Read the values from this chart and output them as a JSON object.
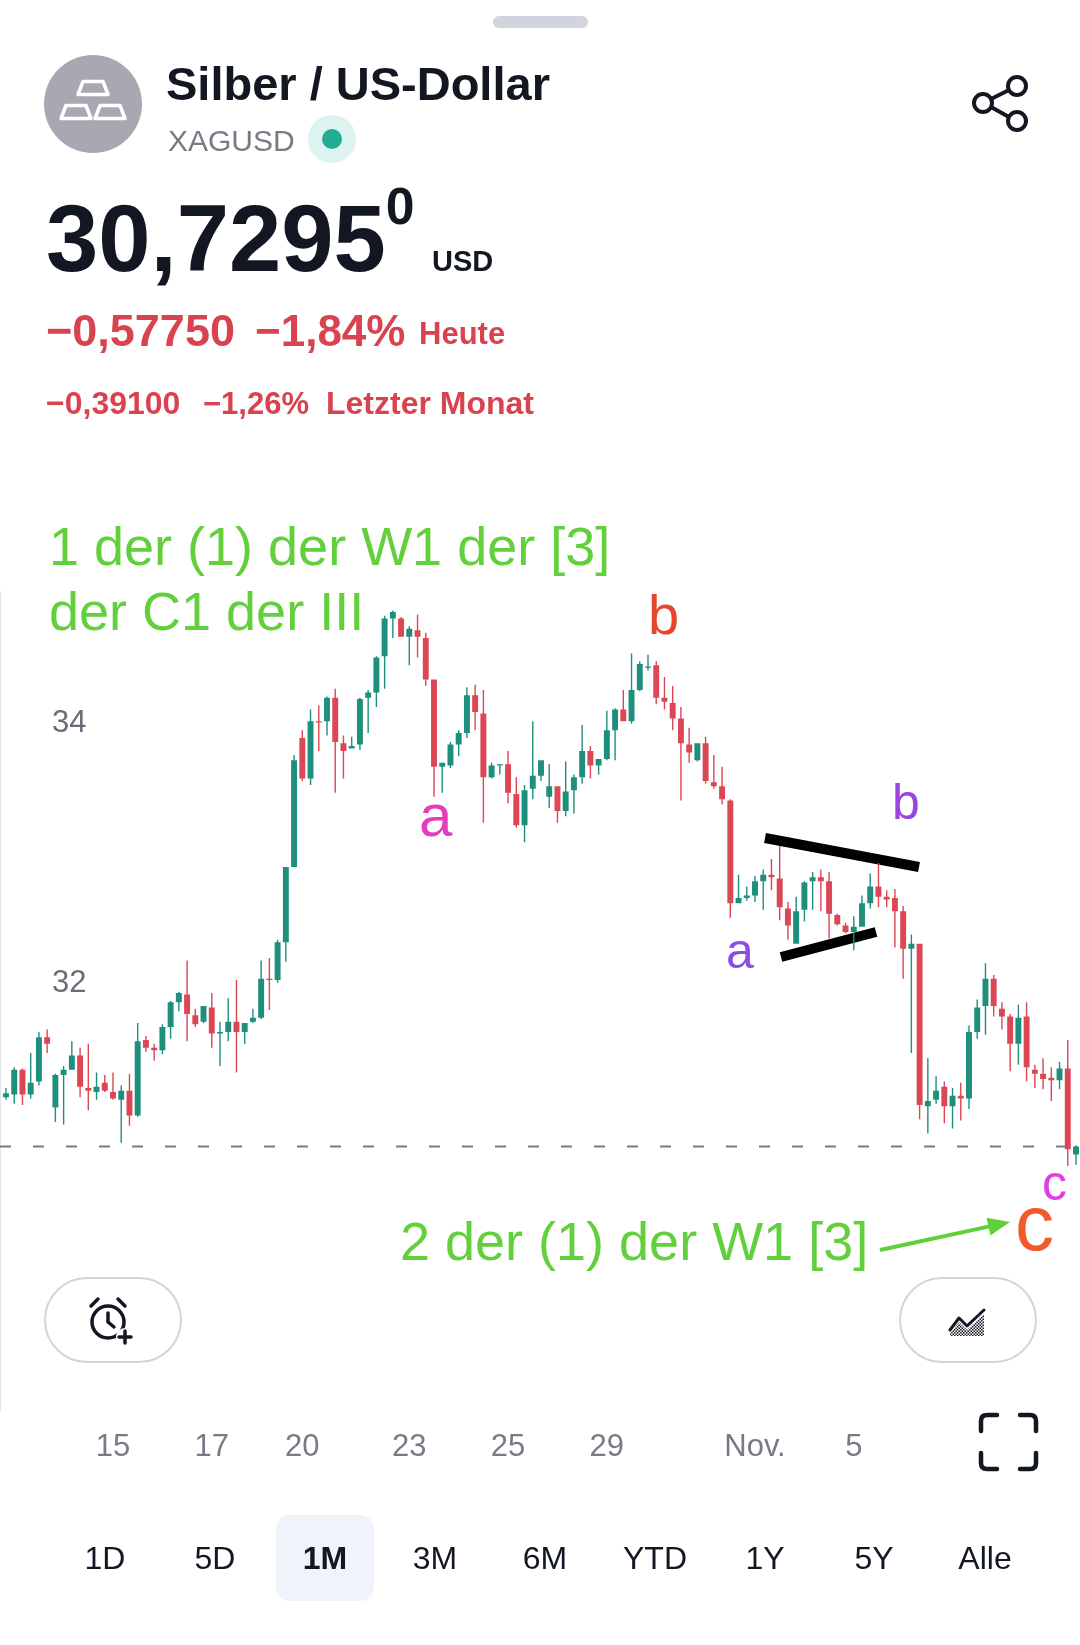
{
  "chart_data": {
    "type": "candlestick",
    "title": "Silber / US-Dollar",
    "subtitle": "XAGUSD",
    "categories": [
      null,
      null,
      null,
      null,
      null,
      null,
      null,
      null,
      null,
      null,
      null,
      null,
      null,
      "15",
      null,
      null,
      null,
      null,
      null,
      null,
      null,
      null,
      null,
      null,
      null,
      "17",
      null,
      null,
      null,
      null,
      null,
      null,
      null,
      null,
      null,
      null,
      "20",
      null,
      null,
      null,
      null,
      null,
      null,
      null,
      null,
      null,
      null,
      null,
      null,
      "23",
      null,
      null,
      null,
      null,
      null,
      null,
      null,
      null,
      null,
      null,
      null,
      "25",
      null,
      null,
      null,
      null,
      null,
      null,
      null,
      null,
      null,
      null,
      null,
      "29",
      null,
      null,
      null,
      null,
      null,
      null,
      null,
      null,
      null,
      null,
      null,
      null,
      null,
      null,
      null,
      null,
      null,
      "Nov.",
      null,
      null,
      null,
      null,
      null,
      null,
      null,
      null,
      null,
      null,
      null,
      "5",
      null,
      null,
      null,
      null,
      null,
      null,
      null,
      null,
      null,
      null,
      null,
      null,
      null,
      null,
      null,
      null,
      null,
      null,
      null,
      null,
      null,
      null,
      null,
      null,
      null,
      null,
      null
    ],
    "ohlc": [
      [
        31.11,
        31.18,
        31.09,
        31.14
      ],
      [
        31.13,
        31.34,
        31.06,
        31.32
      ],
      [
        31.32,
        31.33,
        31.05,
        31.13
      ],
      [
        31.13,
        31.45,
        31.1,
        31.22
      ],
      [
        31.23,
        31.61,
        31.2,
        31.57
      ],
      [
        31.57,
        31.63,
        31.45,
        31.52
      ],
      [
        31.03,
        31.29,
        30.92,
        31.28
      ],
      [
        31.28,
        31.35,
        30.9,
        31.32
      ],
      [
        31.32,
        31.54,
        31.32,
        31.43
      ],
      [
        31.43,
        31.49,
        31.11,
        31.19
      ],
      [
        31.18,
        31.52,
        31.01,
        31.16
      ],
      [
        31.15,
        31.3,
        31.09,
        31.19
      ],
      [
        31.22,
        31.28,
        31.15,
        31.16
      ],
      [
        31.15,
        31.3,
        31.09,
        31.1
      ],
      [
        31.09,
        31.2,
        30.76,
        31.16
      ],
      [
        31.16,
        31.29,
        30.89,
        30.97
      ],
      [
        30.97,
        31.68,
        30.96,
        31.54
      ],
      [
        31.55,
        31.58,
        31.46,
        31.49
      ],
      [
        31.49,
        31.52,
        31.39,
        31.47
      ],
      [
        31.47,
        31.67,
        31.44,
        31.65
      ],
      [
        31.65,
        31.85,
        31.56,
        31.84
      ],
      [
        31.84,
        31.92,
        31.77,
        31.91
      ],
      [
        31.9,
        32.16,
        31.54,
        31.75
      ],
      [
        31.74,
        31.79,
        31.65,
        31.67
      ],
      [
        31.69,
        31.81,
        31.68,
        31.81
      ],
      [
        31.8,
        31.91,
        31.49,
        31.6
      ],
      [
        31.6,
        31.69,
        31.35,
        31.61
      ],
      [
        31.61,
        31.87,
        31.54,
        31.69
      ],
      [
        31.69,
        32.01,
        31.3,
        31.61
      ],
      [
        31.61,
        31.68,
        31.52,
        31.68
      ],
      [
        31.69,
        31.79,
        31.68,
        31.72
      ],
      [
        31.72,
        32.16,
        31.71,
        32.02
      ],
      [
        32.02,
        32.18,
        31.78,
        32.01
      ],
      [
        32.01,
        32.32,
        31.99,
        32.3
      ],
      [
        32.3,
        32.88,
        32.15,
        32.88
      ],
      [
        32.88,
        33.74,
        32.88,
        33.7
      ],
      [
        33.87,
        33.93,
        33.54,
        33.56
      ],
      [
        33.56,
        34.09,
        33.51,
        34.0
      ],
      [
        34.0,
        34.12,
        33.77,
        33.99
      ],
      [
        34.0,
        34.19,
        33.89,
        34.18
      ],
      [
        34.18,
        34.25,
        33.45,
        33.84
      ],
      [
        33.83,
        33.89,
        33.56,
        33.77
      ],
      [
        33.79,
        33.88,
        33.79,
        33.81
      ],
      [
        33.82,
        34.18,
        33.78,
        34.17
      ],
      [
        34.18,
        34.24,
        33.91,
        34.22
      ],
      [
        34.22,
        34.5,
        34.11,
        34.49
      ],
      [
        34.5,
        34.81,
        34.25,
        34.79
      ],
      [
        34.79,
        34.85,
        34.64,
        34.84
      ],
      [
        34.79,
        34.8,
        34.65,
        34.65
      ],
      [
        34.65,
        34.73,
        34.43,
        34.71
      ],
      [
        34.7,
        34.82,
        34.49,
        34.65
      ],
      [
        34.64,
        34.68,
        34.27,
        34.32
      ],
      [
        34.32,
        34.32,
        33.42,
        33.65
      ],
      [
        33.65,
        33.68,
        33.45,
        33.68
      ],
      [
        33.66,
        33.84,
        33.64,
        33.82
      ],
      [
        33.82,
        33.93,
        33.73,
        33.91
      ],
      [
        33.91,
        34.26,
        33.87,
        34.2
      ],
      [
        34.2,
        34.28,
        33.93,
        34.07
      ],
      [
        34.06,
        34.24,
        33.22,
        33.57
      ],
      [
        33.57,
        33.68,
        33.56,
        33.66
      ],
      [
        33.66,
        33.67,
        33.59,
        33.67
      ],
      [
        33.67,
        33.77,
        33.37,
        33.45
      ],
      [
        33.44,
        33.57,
        33.18,
        33.2
      ],
      [
        33.2,
        33.51,
        33.07,
        33.47
      ],
      [
        33.48,
        34.0,
        33.4,
        33.58
      ],
      [
        33.58,
        33.7,
        33.54,
        33.7
      ],
      [
        33.42,
        33.67,
        33.33,
        33.5
      ],
      [
        33.5,
        33.5,
        33.22,
        33.31
      ],
      [
        33.31,
        33.69,
        33.27,
        33.46
      ],
      [
        33.47,
        33.59,
        33.29,
        33.57
      ],
      [
        33.57,
        33.97,
        33.52,
        33.77
      ],
      [
        33.77,
        33.81,
        33.56,
        33.66
      ],
      [
        33.66,
        33.71,
        33.59,
        33.71
      ],
      [
        33.71,
        34.08,
        33.7,
        33.93
      ],
      [
        33.93,
        34.1,
        33.7,
        34.09
      ],
      [
        34.09,
        34.24,
        34.0,
        34.0
      ],
      [
        34.0,
        34.52,
        33.98,
        34.24
      ],
      [
        34.24,
        34.46,
        34.23,
        34.44
      ],
      [
        34.41,
        34.51,
        34.39,
        34.42
      ],
      [
        34.43,
        34.46,
        34.13,
        34.18
      ],
      [
        34.18,
        34.34,
        34.09,
        34.15
      ],
      [
        34.14,
        34.27,
        33.93,
        34.02
      ],
      [
        34.02,
        34.11,
        33.39,
        33.83
      ],
      [
        33.82,
        33.95,
        33.68,
        33.76
      ],
      [
        33.7,
        33.83,
        33.69,
        33.83
      ],
      [
        33.83,
        33.88,
        33.52,
        33.54
      ],
      [
        33.53,
        33.74,
        33.48,
        33.5
      ],
      [
        33.5,
        33.65,
        33.36,
        33.4
      ],
      [
        33.39,
        33.4,
        32.49,
        32.6
      ],
      [
        32.6,
        32.82,
        32.6,
        32.64
      ],
      [
        32.64,
        32.73,
        32.62,
        32.66
      ],
      [
        32.66,
        32.81,
        32.61,
        32.77
      ],
      [
        32.77,
        32.86,
        32.55,
        32.82
      ],
      [
        32.82,
        32.94,
        32.7,
        32.8
      ],
      [
        32.79,
        33.04,
        32.47,
        32.57
      ],
      [
        32.56,
        32.61,
        32.32,
        32.43
      ],
      [
        32.29,
        32.65,
        32.29,
        32.54
      ],
      [
        32.55,
        32.77,
        32.46,
        32.76
      ],
      [
        32.77,
        32.84,
        32.55,
        32.8
      ],
      [
        32.8,
        32.86,
        32.54,
        32.77
      ],
      [
        32.77,
        32.84,
        32.33,
        32.52
      ],
      [
        32.51,
        32.52,
        32.43,
        32.44
      ],
      [
        32.43,
        32.45,
        32.37,
        32.38
      ],
      [
        32.38,
        32.5,
        32.24,
        32.42
      ],
      [
        32.42,
        32.66,
        32.42,
        32.6
      ],
      [
        32.6,
        32.83,
        32.56,
        32.73
      ],
      [
        32.73,
        32.91,
        32.57,
        32.65
      ],
      [
        32.65,
        32.7,
        32.57,
        32.63
      ],
      [
        32.64,
        32.71,
        32.26,
        32.54
      ],
      [
        32.54,
        32.58,
        32.02,
        32.25
      ],
      [
        32.25,
        32.36,
        31.45,
        32.29
      ],
      [
        32.29,
        32.29,
        30.94,
        31.05
      ],
      [
        31.04,
        31.41,
        30.83,
        31.08
      ],
      [
        31.09,
        31.27,
        31.06,
        31.16
      ],
      [
        31.19,
        31.23,
        30.91,
        31.04
      ],
      [
        31.04,
        31.18,
        30.87,
        31.12
      ],
      [
        31.12,
        31.22,
        30.93,
        31.1
      ],
      [
        31.1,
        31.66,
        31.02,
        31.61
      ],
      [
        31.61,
        31.86,
        31.56,
        31.8
      ],
      [
        31.81,
        32.14,
        31.59,
        32.02
      ],
      [
        32.02,
        32.05,
        31.73,
        31.81
      ],
      [
        31.79,
        31.84,
        31.63,
        31.73
      ],
      [
        31.73,
        31.75,
        31.31,
        31.52
      ],
      [
        31.52,
        31.82,
        31.36,
        31.72
      ],
      [
        31.73,
        31.84,
        31.23,
        31.34
      ],
      [
        31.32,
        31.36,
        31.18,
        31.29
      ],
      [
        31.29,
        31.41,
        31.17,
        31.25
      ],
      [
        31.26,
        31.34,
        31.08,
        31.24
      ],
      [
        31.24,
        31.38,
        31.17,
        31.33
      ],
      [
        31.33,
        31.55,
        30.58,
        30.71
      ],
      [
        30.67,
        30.74,
        30.59,
        30.73
      ]
    ],
    "colors": [
      "#1e8f7d",
      "#1e8f7d",
      "#dc4755",
      "#1e8f7d",
      "#1e8f7d",
      "#dc4755",
      "#1e8f7d",
      "#1e8f7d",
      "#1e8f7d",
      "#dc4755",
      "#dc4755",
      "#1e8f7d",
      "#dc4755",
      "#dc4755",
      "#1e8f7d",
      "#dc4755",
      "#1e8f7d",
      "#dc4755",
      "#dc4755",
      "#1e8f7d",
      "#1e8f7d",
      "#1e8f7d",
      "#dc4755",
      "#dc4755",
      "#1e8f7d",
      "#dc4755",
      "#1e8f7d",
      "#1e8f7d",
      "#dc4755",
      "#1e8f7d",
      "#1e8f7d",
      "#1e8f7d",
      "#dc4755",
      "#1e8f7d",
      "#1e8f7d",
      "#1e8f7d",
      "#dc4755",
      "#1e8f7d",
      "#dc4755",
      "#1e8f7d",
      "#dc4755",
      "#dc4755",
      "#1e8f7d",
      "#1e8f7d",
      "#1e8f7d",
      "#1e8f7d",
      "#1e8f7d",
      "#1e8f7d",
      "#dc4755",
      "#1e8f7d",
      "#dc4755",
      "#dc4755",
      "#dc4755",
      "#1e8f7d",
      "#1e8f7d",
      "#1e8f7d",
      "#1e8f7d",
      "#dc4755",
      "#dc4755",
      "#1e8f7d",
      "#1e8f7d",
      "#dc4755",
      "#dc4755",
      "#1e8f7d",
      "#1e8f7d",
      "#1e8f7d",
      "#1e8f7d",
      "#dc4755",
      "#1e8f7d",
      "#1e8f7d",
      "#1e8f7d",
      "#dc4755",
      "#1e8f7d",
      "#1e8f7d",
      "#1e8f7d",
      "#dc4755",
      "#1e8f7d",
      "#1e8f7d",
      "#1e8f7d",
      "#dc4755",
      "#dc4755",
      "#dc4755",
      "#dc4755",
      "#dc4755",
      "#1e8f7d",
      "#dc4755",
      "#dc4755",
      "#dc4755",
      "#dc4755",
      "#1e8f7d",
      "#1e8f7d",
      "#1e8f7d",
      "#1e8f7d",
      "#dc4755",
      "#dc4755",
      "#dc4755",
      "#1e8f7d",
      "#1e8f7d",
      "#1e8f7d",
      "#dc4755",
      "#dc4755",
      "#dc4755",
      "#dc4755",
      "#1e8f7d",
      "#1e8f7d",
      "#1e8f7d",
      "#dc4755",
      "#dc4755",
      "#dc4755",
      "#dc4755",
      "#1e8f7d",
      "#dc4755",
      "#1e8f7d",
      "#1e8f7d",
      "#dc4755",
      "#1e8f7d",
      "#dc4755",
      "#1e8f7d",
      "#1e8f7d",
      "#1e8f7d",
      "#dc4755",
      "#dc4755",
      "#dc4755",
      "#1e8f7d",
      "#dc4755",
      "#dc4755",
      "#dc4755",
      "#dc4755",
      "#1e8f7d",
      "#dc4755",
      "#1e8f7d"
    ],
    "ylim": [
      28.7,
      35
    ],
    "yticks": [
      32,
      34
    ],
    "ref_lines": [
      {
        "axis": "y",
        "value": 30.73,
        "color": "#787b86",
        "line_style": "dashed"
      }
    ],
    "annotations": [
      "30,7295$^{0}$",
      "USD",
      "−0,57750",
      "−1,84%",
      "Heute",
      "−0,39100",
      "−1,26%",
      "Letzter Monat",
      "1 der (1) der W1 der [3]",
      "der C1 der III",
      "b",
      "a",
      "a",
      "b",
      "c",
      "c",
      "2 der (1) der W1 [3]",
      "1D",
      "5D",
      "1M",
      "3M",
      "6M",
      "YTD",
      "1Y",
      "5Y",
      "Alle"
    ]
  }
}
